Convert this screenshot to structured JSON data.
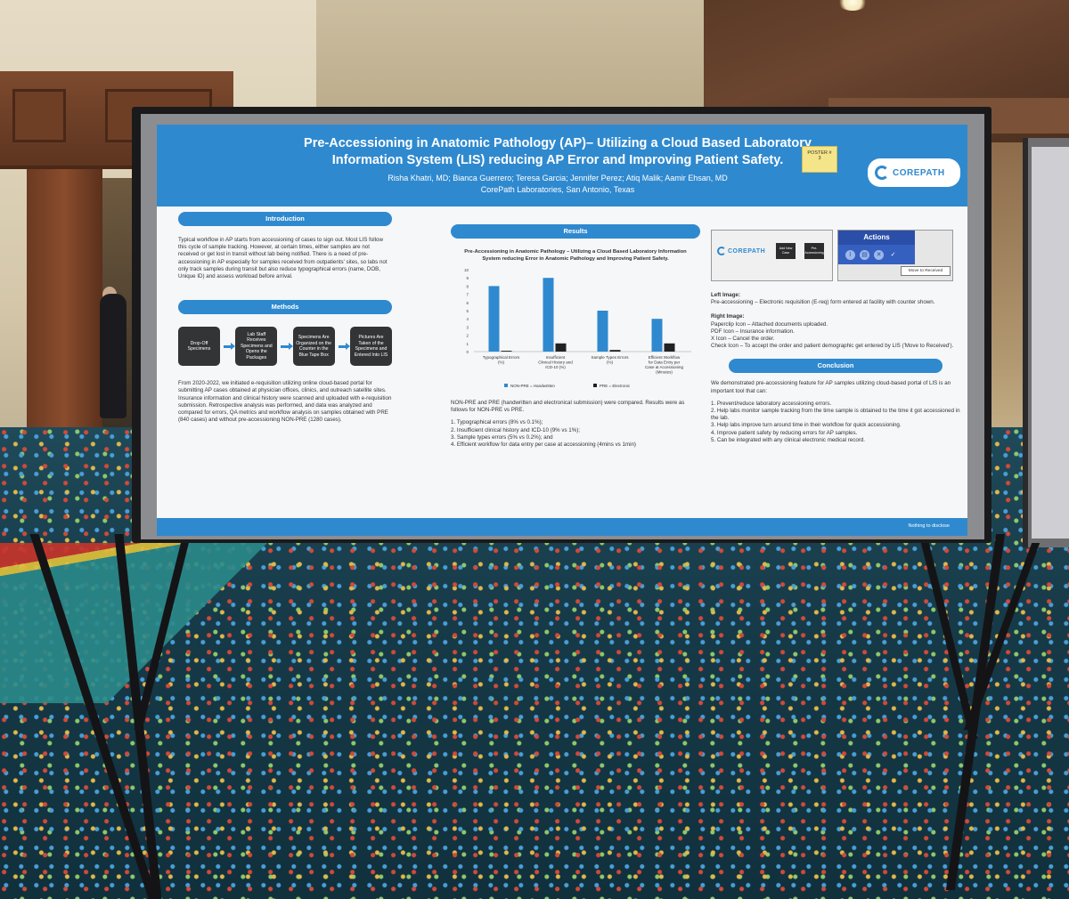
{
  "poster": {
    "title_line1": "Pre-Accessioning in Anatomic Pathology (AP)– Utilizing a Cloud Based Laboratory",
    "title_line2": "Information System (LIS) reducing AP Error and Improving Patient Safety.",
    "authors": "Risha Khatri, MD; Bianca Guerrero; Teresa Garcia; Jennifer Perez; Atiq Malik; Aamir Ehsan, MD",
    "affiliation": "CorePath Laboratories, San Antonio, Texas",
    "logo_text": "COREPATH",
    "tag_line1": "POSTER #",
    "tag_line2": "3",
    "footer": "Nothing to disclose"
  },
  "introduction": {
    "heading": "Introduction",
    "text": "Typical workflow in AP starts from accessioning of cases to sign out. Most LIS follow this cycle of sample tracking. However, at certain times, either samples are not received or get lost in transit without lab being notified. There is a need of pre-accessioning in AP especially for samples received from outpatients' sites, so labs not only track samples during transit but also reduce typographical errors (name, DOB, Unique ID) and assess workload before arrival."
  },
  "methods": {
    "heading": "Methods",
    "steps": [
      "Drop-Off Specimens",
      "Lab Staff Receives Specimens and Opens the Packages",
      "Specimens Are Organized on the Counter in the Blue Tape Box",
      "Pictures Are Taken of the Specimens and Entered Into LIS"
    ],
    "text": "From 2020-2022, we initiated e-requisition utilizing online cloud-based portal for submitting AP cases obtained at physician offices, clinics, and outreach satellite sites. Insurance information and clinical history were scanned and uploaded with e-requisition submission. Retrospective analysis was performed, and data was analyzed and compared for errors, QA metrics and workflow analysis on samples obtained with PRE (840 cases) and without pre-accessioning NON-PRE (1280 cases)."
  },
  "results": {
    "heading": "Results",
    "chart_title": "Pre-Accessioning in Anatomic Pathology – Utilizing a Cloud Based Laboratory Information System reducing Error in Anatomic Pathology and Improving Patient Safety.",
    "text1": "NON-PRE and PRE (handwritten and electronical submission) were compared. Results were as follows for NON-PRE vs PRE.",
    "items": [
      "1.  Typographical errors (8% vs 0.1%);",
      "2.  Insufficient clinical history and ICD-10 (9% vs 1%);",
      "3.  Sample types errors (5% vs 0.2%); and",
      "4.  Efficient workflow for data entry per case at accessioning (4mins vs 1min)"
    ]
  },
  "chart_data": {
    "type": "bar",
    "title": "Pre-Accessioning in Anatomic Pathology – Utilizing a Cloud Based Laboratory Information System reducing Error in Anatomic Pathology and Improving Patient Safety.",
    "categories": [
      "Typographical Errors (%)",
      "Insufficient Clinical History and ICD-10 (%)",
      "Sample Types Errors (%)",
      "Efficient Workflow for Data Entry per Case at Accessioning (Minutes)"
    ],
    "series": [
      {
        "name": "NON-PRE = Handwritten",
        "values": [
          8,
          9,
          5,
          4
        ],
        "color": "#2f89cf"
      },
      {
        "name": "PRE = Electronic",
        "values": [
          0.1,
          1,
          0.2,
          1
        ],
        "color": "#222222"
      }
    ],
    "ylim": [
      0,
      10
    ],
    "yticks": [
      "0",
      "1",
      "2",
      "3",
      "4",
      "5",
      "6",
      "7",
      "8",
      "9",
      "10"
    ],
    "legend": "bottom"
  },
  "figures": {
    "left_logo": "COREPATH",
    "left_btn1": "Add New Case",
    "left_btn2": "Pre-Accessioning",
    "actions_label": "Actions",
    "tooltip": "Move to Received",
    "left_image_heading": "Left Image:",
    "left_image_text": "Pre-accessioning – Electronic requisition (E-req) form entered at facility with counter shown.",
    "right_image_heading": "Right Image:",
    "right_image_lines": [
      "Paperclip Icon – Attached documents uploaded.",
      "PDF Icon – Insurance information.",
      "X Icon – Cancel the order.",
      "Check Icon – To accept the order and patient demographic get entered by LIS ('Move to Received')."
    ]
  },
  "conclusion": {
    "heading": "Conclusion",
    "text": "We demonstrated pre-accessioning feature for AP samples utilizing cloud-based portal of LIS is an important tool that can:",
    "items": [
      "1.  Prevent/reduce laboratory accessioning errors.",
      "2.  Help labs monitor sample tracking from the time sample is obtained to the time it got accessioned in the lab.",
      "3.  Help labs improve turn around time in their workflow for quick accessioning.",
      "4.  Improve patient safety by reducing errors for AP samples.",
      "5.  Can be integrated with any clinical electronic medical record."
    ]
  }
}
